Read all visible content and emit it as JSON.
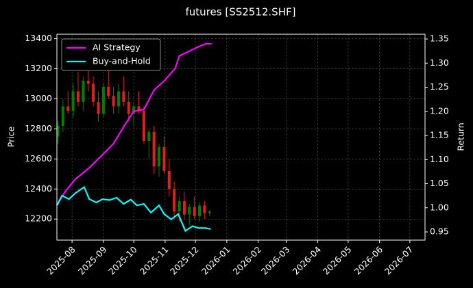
{
  "chart_data": {
    "type": "candlestick",
    "title": "futures [SS2512.SHF]",
    "ylabel": "Price",
    "y2label": "Return",
    "x": [
      -14,
      -9,
      -4,
      1,
      6,
      11,
      16,
      21,
      26,
      31,
      36,
      41,
      46,
      51,
      56,
      61,
      66,
      71,
      76,
      81,
      86,
      91,
      96,
      101,
      106,
      111,
      116,
      121,
      126,
      131,
      136
    ],
    "open": [
      12750,
      12820,
      12950,
      12920,
      13050,
      12980,
      13120,
      13100,
      12980,
      12900,
      13080,
      13020,
      12950,
      13050,
      12980,
      12900,
      12950,
      12920,
      12720,
      12780,
      12550,
      12680,
      12520,
      12400,
      12250,
      12320,
      12230,
      12280,
      12220,
      12290,
      12240
    ],
    "high": [
      12850,
      13000,
      13050,
      13100,
      13180,
      13150,
      13230,
      13150,
      13050,
      13100,
      13200,
      13080,
      13100,
      13150,
      13050,
      12980,
      13050,
      12950,
      12800,
      12820,
      12700,
      12750,
      12600,
      12450,
      12350,
      12380,
      12300,
      12350,
      12310,
      12320,
      12260
    ],
    "low": [
      12700,
      12780,
      12900,
      12880,
      12950,
      12920,
      13050,
      12950,
      12850,
      12880,
      13000,
      12900,
      12900,
      12950,
      12850,
      12820,
      12900,
      12700,
      12600,
      12500,
      12480,
      12500,
      12350,
      12200,
      12180,
      12200,
      12160,
      12200,
      12180,
      12200,
      12220
    ],
    "close": [
      12820,
      12950,
      12920,
      13050,
      12980,
      13120,
      13100,
      12980,
      12900,
      13080,
      13020,
      12950,
      13050,
      12980,
      12900,
      12950,
      12920,
      12720,
      12780,
      12550,
      12680,
      12520,
      12400,
      12250,
      12320,
      12230,
      12280,
      12220,
      12290,
      12240,
      12250
    ],
    "up_color": "#008000",
    "down_color": "#e0201a",
    "series": [
      {
        "name": "AI Strategy",
        "color": "#ff00ff",
        "axis": "y2",
        "x": [
          -15,
          -7,
          3,
          17,
          30,
          41,
          51,
          61,
          71,
          81,
          91,
          102,
          106,
          115,
          125,
          132,
          138
        ],
        "values": [
          1.005,
          1.033,
          1.059,
          1.083,
          1.11,
          1.133,
          1.168,
          1.2,
          1.204,
          1.244,
          1.263,
          1.289,
          1.315,
          1.324,
          1.334,
          1.34,
          1.34
        ]
      },
      {
        "name": "Buy-and-Hold",
        "color": "#00ffff",
        "axis": "y2",
        "x": [
          -15,
          -10,
          -3,
          3,
          12,
          17,
          24,
          30,
          37,
          44,
          51,
          58,
          64,
          71,
          78,
          86,
          91,
          98,
          105,
          112,
          119,
          125,
          132,
          137
        ],
        "values": [
          1.005,
          1.025,
          1.018,
          1.03,
          1.043,
          1.018,
          1.011,
          1.018,
          1.016,
          1.021,
          1.008,
          1.017,
          1.005,
          1.008,
          0.99,
          1.005,
          0.987,
          0.976,
          0.987,
          0.952,
          0.962,
          0.958,
          0.958,
          0.956
        ]
      }
    ],
    "xlim": [
      -15,
      349
    ],
    "xticks": [
      {
        "value": 0,
        "label": "2025-08"
      },
      {
        "value": 31,
        "label": "2025-09"
      },
      {
        "value": 61,
        "label": "2025-10"
      },
      {
        "value": 92,
        "label": "2025-11"
      },
      {
        "value": 122,
        "label": "2025-12"
      },
      {
        "value": 153,
        "label": "2026-01"
      },
      {
        "value": 184,
        "label": "2026-02"
      },
      {
        "value": 212,
        "label": "2026-03"
      },
      {
        "value": 243,
        "label": "2026-04"
      },
      {
        "value": 273,
        "label": "2026-05"
      },
      {
        "value": 304,
        "label": "2026-06"
      },
      {
        "value": 334,
        "label": "2026-07"
      }
    ],
    "ylim": [
      12060,
      13430
    ],
    "yticks": [
      12200,
      12400,
      12600,
      12800,
      13000,
      13200,
      13400
    ],
    "y2lim": [
      0.933,
      1.36
    ],
    "y2ticks": [
      0.95,
      {
        "value": 1,
        "label": "1.00"
      },
      1.05,
      {
        "value": 1.1,
        "label": "1.10"
      },
      1.15,
      {
        "value": 1.2,
        "label": "1.20"
      },
      1.25,
      {
        "value": 1.3,
        "label": "1.30"
      },
      1.35
    ],
    "grid": true,
    "legend": "upper left"
  }
}
